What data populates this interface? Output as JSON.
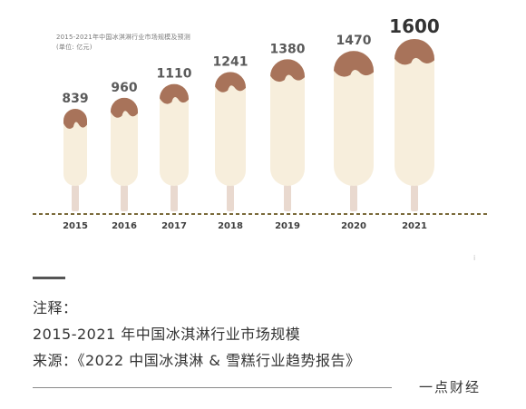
{
  "chart_data": {
    "type": "bar",
    "title": "2015-2021年中国冰淇淋行业市场规模及预测",
    "unit_note": "(单位: 亿元)",
    "categories": [
      "2015",
      "2016",
      "2017",
      "2018",
      "2019",
      "2020",
      "2021"
    ],
    "values": [
      839,
      960,
      1110,
      1241,
      1380,
      1470,
      1600
    ],
    "value_labels": [
      "839",
      "960",
      "1110",
      "1241",
      "1380",
      "1470",
      "1600"
    ],
    "ylim": [
      0,
      1600
    ],
    "grid": false,
    "legend": "none",
    "colors": {
      "bar_body": "#f7eedc",
      "chocolate_top": "#a8735a",
      "stick": "#e9d9cf",
      "baseline": "#7a6a3a",
      "label": "#5a5a5a",
      "highlight_label": "#333333"
    }
  },
  "corner_mark": "i",
  "notes": {
    "heading": "注释：",
    "line1": "2015-2021 年中国冰淇淋行业市场规模",
    "line2": "来源：《2022 中国冰淇淋 & 雪糕行业趋势报告》"
  },
  "brand": "一点财经"
}
